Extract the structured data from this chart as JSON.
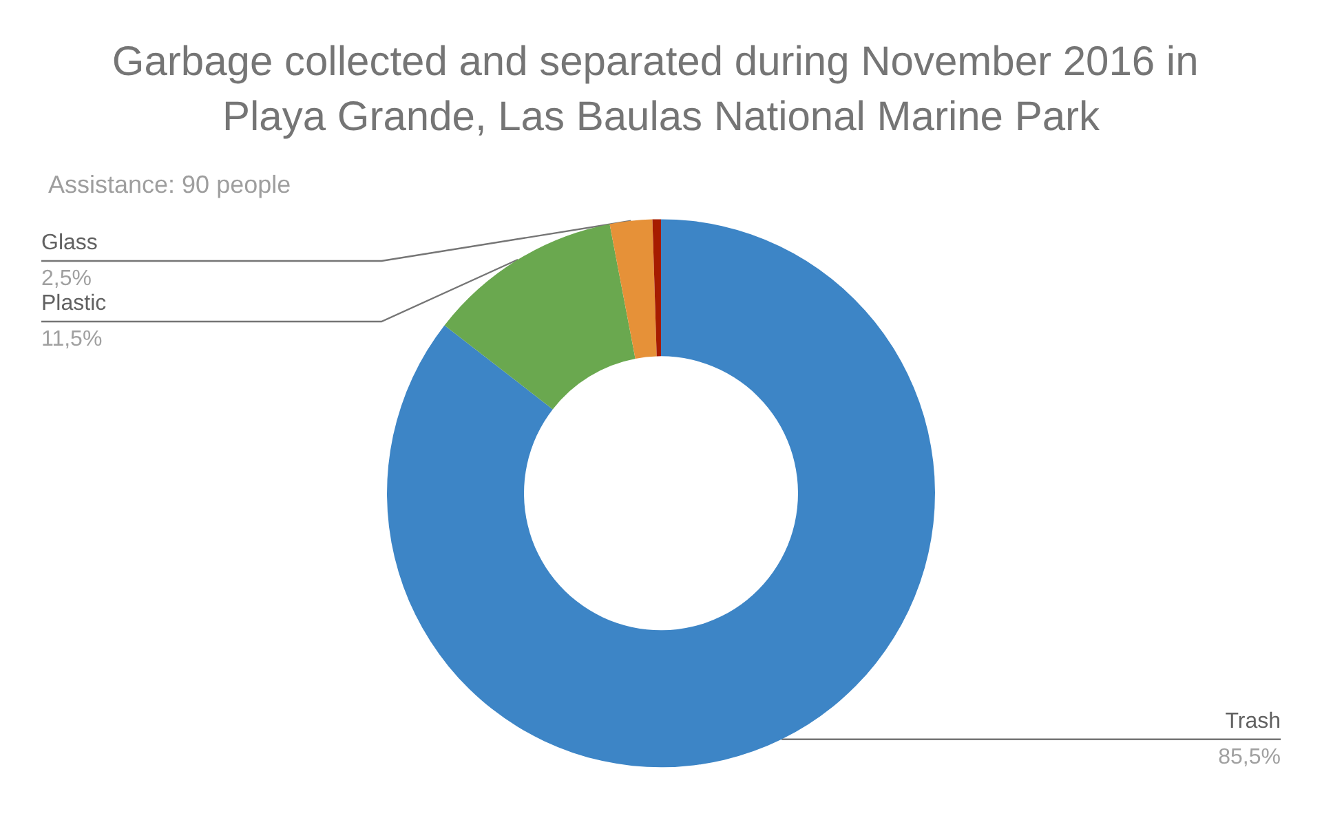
{
  "chart_data": {
    "type": "donut",
    "title": "Garbage collected and separated during November 2016 in Playa Grande, Las Baulas National Marine Park",
    "subtitle": "Assistance: 90 people",
    "categories": [
      "Trash",
      "Plastic",
      "Glass",
      null
    ],
    "values": [
      85.5,
      11.5,
      2.5,
      0.5
    ],
    "value_labels": [
      "85,5%",
      "11,5%",
      "2,5%",
      null
    ],
    "colors": [
      "#3d85c6",
      "#6aa84f",
      "#e69138",
      "#a61c00"
    ]
  }
}
